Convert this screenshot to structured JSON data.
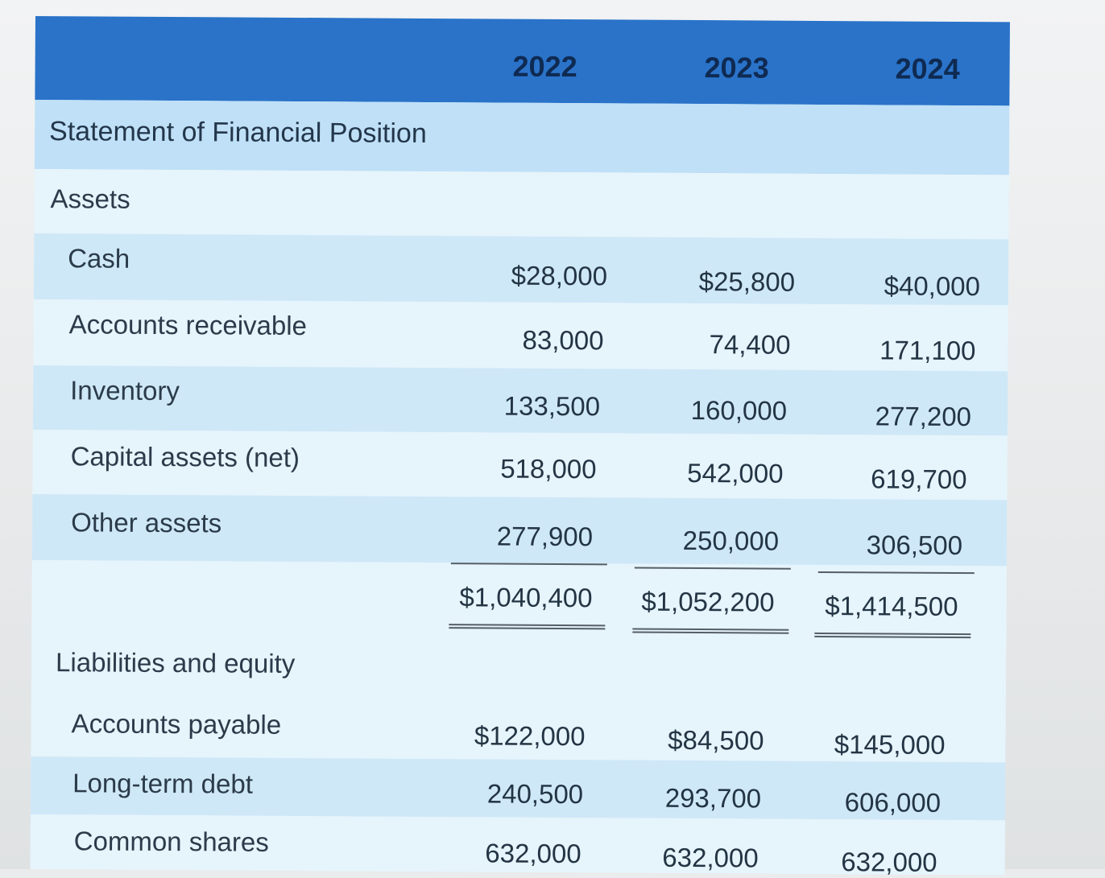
{
  "header": {
    "years": [
      "2022",
      "2023",
      "2024"
    ]
  },
  "title": "Statement of Financial Position",
  "sections": {
    "assets": "Assets",
    "liabilities": "Liabilities and equity"
  },
  "assets": [
    {
      "label": "Cash",
      "values": [
        "$28,000",
        "$25,800",
        "$40,000"
      ]
    },
    {
      "label": "Accounts receivable",
      "values": [
        "83,000",
        "74,400",
        "171,100"
      ]
    },
    {
      "label": "Inventory",
      "values": [
        "133,500",
        "160,000",
        "277,200"
      ]
    },
    {
      "label": "Capital assets (net)",
      "values": [
        "518,000",
        "542,000",
        "619,700"
      ]
    },
    {
      "label": "Other assets",
      "values": [
        "277,900",
        "250,000",
        "306,500"
      ]
    }
  ],
  "total_assets": [
    "$1,040,400",
    "$1,052,200",
    "$1,414,500"
  ],
  "liabilities": [
    {
      "label": "Accounts payable",
      "values": [
        "$122,000",
        "$84,500",
        "$145,000"
      ]
    },
    {
      "label": "Long-term debt",
      "values": [
        "240,500",
        "293,700",
        "606,000"
      ]
    },
    {
      "label": "Common shares",
      "values": [
        "632,000",
        "632,000",
        "632,000"
      ]
    }
  ],
  "colors": {
    "header": "#2a73c9",
    "row_dark": "#cfe8f8",
    "row_light": "#e6f4fb"
  }
}
